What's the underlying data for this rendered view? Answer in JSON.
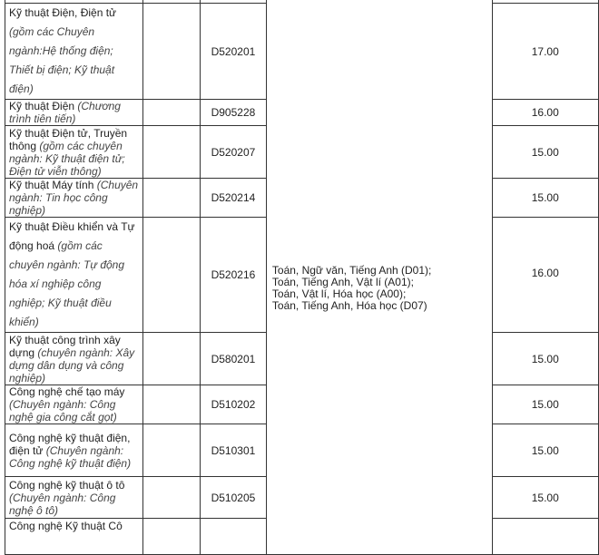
{
  "rows": [
    {
      "name": "Kỹ thuật Điện, Điện tử",
      "note": "(gồm các  Chuyên ngành:Hệ thống điện; Thiết bị điện; Kỹ thuật điện)",
      "code": "D520201",
      "score": "17.00"
    },
    {
      "name": "Kỹ thuật Điện",
      "note": "(Chương trình tiên tiến)",
      "code": "D905228",
      "score": "16.00"
    },
    {
      "name": "Kỹ thuật Điện tử, Truyền thông",
      "note": "(gồm các chuyên ngành: Kỹ thuật điện tử; Điện tử viễn thông)",
      "code": "D520207",
      "score": "15.00"
    },
    {
      "name": "Kỹ thuật Máy tính",
      "note": "(Chuyên ngành: Tin học công nghiệp)",
      "code": "D520214",
      "score": "15.00"
    },
    {
      "name": "Kỹ thuật Điều khiển và Tự động hoá",
      "note": "(gồm các chuyên ngành: Tự động hóa xí nghiệp công nghiệp; Kỹ thuật điều khiển)",
      "code": "D520216",
      "score": "16.00"
    },
    {
      "name": "Kỹ thuật công trình xây dựng",
      "note": "(chuyên ngành: Xây dựng dân dụng và công nghiệp)",
      "code": "D580201",
      "score": "15.00"
    },
    {
      "name": "Công nghệ chế tạo máy",
      "note": "(Chuyên ngành: Công nghệ gia công cắt gọt)",
      "code": "D510202",
      "score": "15.00"
    },
    {
      "name": "Công nghệ kỹ thuật điện, điện tử",
      "note": "(Chuyên ngành: Công nghệ kỹ thuật điện)",
      "code": "D510301",
      "score": "15.00"
    },
    {
      "name": "Công nghệ kỹ thuật ô tô",
      "note": "(Chuyên ngành: Công nghệ ô tô)",
      "code": "D510205",
      "score": "15.00"
    },
    {
      "name": "Công nghệ Kỹ thuật Cô",
      "note": "",
      "code": "",
      "score": ""
    }
  ],
  "subject_combinations": [
    "Toán, Ngữ văn, Tiếng Anh (D01);",
    "Toán, Tiếng Anh, Vật lí (A01);",
    "Toán, Vật lí, Hóa học (A00);",
    "Toán, Tiếng Anh, Hóa học (D07)"
  ]
}
